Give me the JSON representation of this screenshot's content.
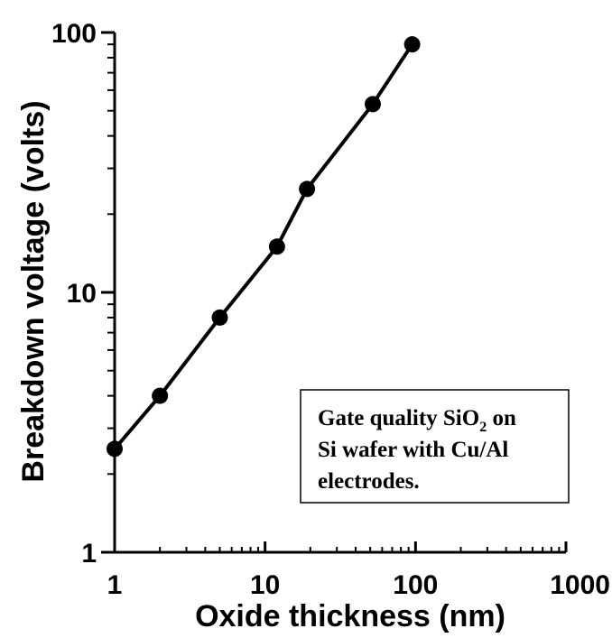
{
  "chart_data": {
    "type": "line",
    "title": "",
    "xlabel": "Oxide thickness (nm)",
    "ylabel": "Breakdown voltage (volts)",
    "x_scale": "log",
    "y_scale": "log",
    "xlim": [
      1,
      1000
    ],
    "ylim": [
      1,
      100
    ],
    "x_ticks": [
      {
        "value": 1,
        "label": "1"
      },
      {
        "value": 10,
        "label": "10"
      },
      {
        "value": 100,
        "label": "100"
      },
      {
        "value": 1000,
        "label": "1000"
      }
    ],
    "y_ticks": [
      {
        "value": 1,
        "label": "1"
      },
      {
        "value": 10,
        "label": "10"
      },
      {
        "value": 100,
        "label": "100"
      }
    ],
    "grid": false,
    "legend": "none",
    "series": [
      {
        "x": [
          1,
          2,
          5,
          12,
          19,
          52,
          95
        ],
        "y": [
          2.5,
          4,
          8,
          15,
          25,
          53,
          90
        ]
      }
    ],
    "annotation": {
      "line1_prefix": "Gate quality SiO",
      "line1_subscript": "2",
      "line1_suffix": " on",
      "line2": "Si wafer with Cu/Al",
      "line3": "electrodes."
    },
    "colors": {
      "line": "#000000",
      "marker": "#000000"
    }
  }
}
